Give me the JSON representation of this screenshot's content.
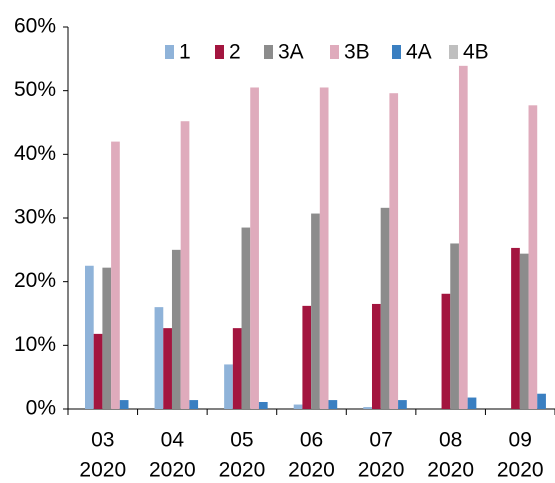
{
  "chart_data": {
    "type": "bar",
    "categories": [
      [
        "03",
        "2020"
      ],
      [
        "04",
        "2020"
      ],
      [
        "05",
        "2020"
      ],
      [
        "06",
        "2020"
      ],
      [
        "07",
        "2020"
      ],
      [
        "08",
        "2020"
      ],
      [
        "09",
        "2020"
      ]
    ],
    "series": [
      {
        "name": "1",
        "color": "#8fb3d9",
        "values": [
          22.5,
          16,
          7,
          0.7,
          0.3,
          0,
          0
        ]
      },
      {
        "name": "2",
        "color": "#a3153f",
        "values": [
          11.8,
          12.7,
          12.7,
          16.2,
          16.5,
          18.1,
          25.3
        ]
      },
      {
        "name": "3A",
        "color": "#8c8c8c",
        "values": [
          22.2,
          25,
          28.5,
          30.7,
          31.6,
          26,
          24.4
        ]
      },
      {
        "name": "3B",
        "color": "#dfabbc",
        "values": [
          42,
          45.2,
          50.5,
          50.5,
          49.6,
          53.9,
          47.7
        ]
      },
      {
        "name": "4A",
        "color": "#3a7fc1",
        "values": [
          1.4,
          1.4,
          1.1,
          1.4,
          1.4,
          1.8,
          2.4
        ]
      },
      {
        "name": "4B",
        "color": "#bfbfbf",
        "values": [
          0,
          0,
          0,
          0,
          0,
          0,
          0
        ]
      }
    ],
    "ylim": [
      0,
      60
    ],
    "yticks": [
      {
        "value": 0,
        "label": "0%"
      },
      {
        "value": 10,
        "label": "10%"
      },
      {
        "value": 20,
        "label": "20%"
      },
      {
        "value": 30,
        "label": "30%"
      },
      {
        "value": 40,
        "label": "40%"
      },
      {
        "value": 50,
        "label": "50%"
      },
      {
        "value": 60,
        "label": "60%"
      }
    ],
    "grid": false
  }
}
